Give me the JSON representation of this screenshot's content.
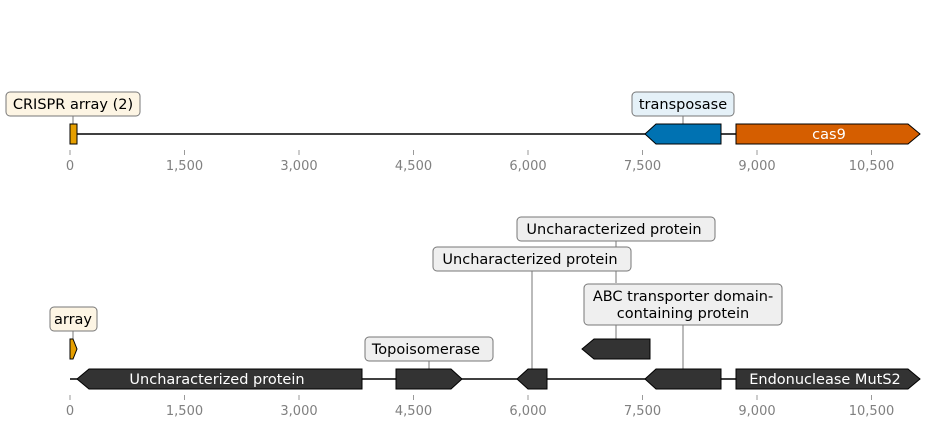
{
  "colors": {
    "array": "#E69F00",
    "transposase": "#0072B2",
    "cas9": "#D55E00",
    "other": "#333333",
    "array_box": "#FDF5E4",
    "transposase_box": "#E5F1F8",
    "generic_box": "#EFEFEF"
  },
  "axis_ticks": [
    "0",
    "1,500",
    "3,000",
    "4,500",
    "6,000",
    "7,500",
    "9,000",
    "10,500"
  ],
  "tracks": [
    {
      "id": "top",
      "features": [
        {
          "name": "array",
          "start": 0,
          "end": 100,
          "strand": 0,
          "color": "array"
        },
        {
          "name": "transposase",
          "start": 7600,
          "end": 8550,
          "strand": -1,
          "color": "transposase"
        },
        {
          "name": "cas9",
          "start": 8720,
          "end": 11200,
          "strand": 1,
          "color": "cas9",
          "inner_label": "cas9"
        }
      ],
      "labels": [
        {
          "text": "CRISPR array (2)",
          "box": "array_box"
        },
        {
          "text": "transposase",
          "box": "transposase_box"
        }
      ]
    },
    {
      "id": "bottom",
      "features": [
        {
          "name": "array",
          "start": 0,
          "end": 100,
          "strand": 1,
          "color": "array"
        },
        {
          "name": "uncharacterized-1",
          "start": 100,
          "end": 3850,
          "strand": -1,
          "color": "other",
          "inner_label": "Uncharacterized protein"
        },
        {
          "name": "topoisomerase",
          "start": 4280,
          "end": 5150,
          "strand": 1,
          "color": "other"
        },
        {
          "name": "uncharacterized-2",
          "start": 5850,
          "end": 6250,
          "strand": -1,
          "color": "other"
        },
        {
          "name": "uncharacterized-3",
          "start": 6800,
          "end": 7600,
          "strand": -1,
          "color": "other"
        },
        {
          "name": "abc-transporter",
          "start": 7600,
          "end": 8550,
          "strand": -1,
          "color": "other"
        },
        {
          "name": "endonuclease-muts2",
          "start": 8720,
          "end": 11200,
          "strand": 1,
          "color": "other",
          "inner_label": "Endonuclease MutS2"
        }
      ],
      "labels": [
        {
          "text": "array",
          "box": "array_box"
        },
        {
          "text": "Topoisomerase",
          "box": "generic_box"
        },
        {
          "text": "Uncharacterized protein",
          "box": "generic_box"
        },
        {
          "text": "Uncharacterized protein",
          "box": "generic_box"
        },
        {
          "text": "ABC transporter domain-",
          "text2": "containing protein",
          "box": "generic_box"
        }
      ]
    }
  ]
}
